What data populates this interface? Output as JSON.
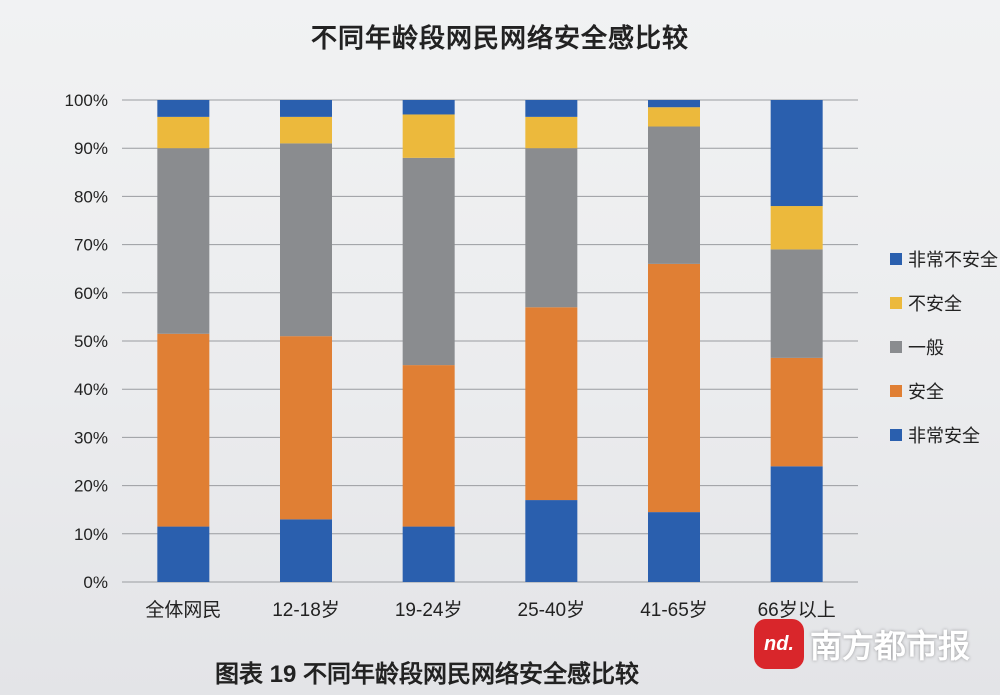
{
  "chart_data": {
    "type": "bar",
    "stacked": true,
    "title": "不同年龄段网民网络安全感比较",
    "categories": [
      "全体网民",
      "12-18岁",
      "19-24岁",
      "25-40岁",
      "41-65岁",
      "66岁以上"
    ],
    "ylim": [
      0,
      100
    ],
    "yticks": [
      "0%",
      "10%",
      "20%",
      "30%",
      "40%",
      "50%",
      "60%",
      "70%",
      "80%",
      "90%",
      "100%"
    ],
    "grid": true,
    "legend_position": "right",
    "series": [
      {
        "name": "非常安全",
        "color": "#2a5fae",
        "values": [
          11.5,
          13,
          11.5,
          17,
          14.5,
          24
        ]
      },
      {
        "name": "安全",
        "color": "#e07f34",
        "values": [
          40,
          38,
          33.5,
          40,
          51.5,
          22.5
        ]
      },
      {
        "name": "一般",
        "color": "#8a8c8f",
        "values": [
          38.5,
          40,
          43,
          33,
          28.5,
          22.5
        ]
      },
      {
        "name": "不安全",
        "color": "#ecb93c",
        "values": [
          6.5,
          5.5,
          9,
          6.5,
          4,
          9
        ]
      },
      {
        "name": "非常不安全",
        "color": "#2a5fae",
        "values": [
          3.5,
          3.5,
          3,
          3.5,
          1.5,
          22
        ]
      }
    ]
  },
  "caption": "图表  19  不同年龄段网民网络安全感比较",
  "watermark": {
    "logo": "nd.",
    "text": "南方都市报"
  }
}
